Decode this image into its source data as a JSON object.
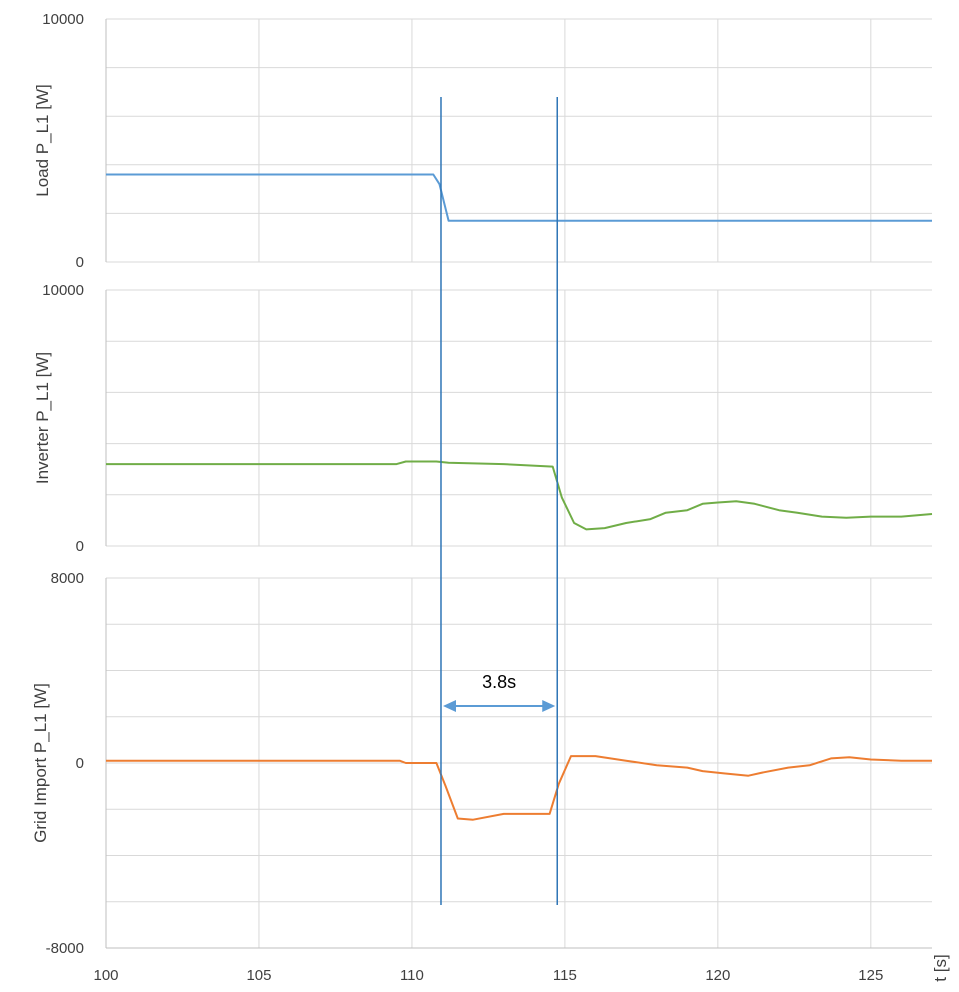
{
  "chart_data": [
    {
      "type": "line",
      "ylabel": "Load P_L1 [W]",
      "ylim": [
        0,
        10000
      ],
      "ytick_labels": [
        "0",
        "10000"
      ],
      "grid": true,
      "color": "#5b9bd5",
      "x": [
        100,
        110.7,
        110.9,
        111.2,
        127
      ],
      "y": [
        3600,
        3600,
        3200,
        1700,
        1700
      ]
    },
    {
      "type": "line",
      "ylabel": "Inverter P_L1 [W]",
      "ylim": [
        0,
        10000
      ],
      "ytick_labels": [
        "0",
        "10000"
      ],
      "grid": true,
      "color": "#70ad47",
      "x": [
        100,
        109.5,
        109.8,
        110.8,
        111.2,
        113,
        114.6,
        114.9,
        115.3,
        115.7,
        116.3,
        117,
        117.8,
        118.3,
        119,
        119.5,
        120,
        120.6,
        121.2,
        122,
        122.6,
        123.4,
        124.2,
        125,
        126,
        127
      ],
      "y": [
        3200,
        3200,
        3300,
        3300,
        3250,
        3200,
        3100,
        1900,
        900,
        650,
        700,
        900,
        1050,
        1300,
        1400,
        1650,
        1700,
        1750,
        1650,
        1400,
        1300,
        1150,
        1100,
        1150,
        1150,
        1250
      ]
    },
    {
      "type": "line",
      "ylabel": "Grid Import P_L1 [W]",
      "ylim": [
        -8000,
        8000
      ],
      "ytick_labels": [
        "-8000",
        "0",
        "8000"
      ],
      "grid": true,
      "color": "#ed7d31",
      "x": [
        100,
        109.6,
        109.8,
        110.8,
        111.1,
        111.5,
        112,
        113,
        114.5,
        114.8,
        115.2,
        116,
        117,
        118,
        119,
        119.5,
        120.2,
        121,
        121.5,
        122.3,
        123,
        123.7,
        124.3,
        125,
        126,
        127
      ],
      "y": [
        100,
        100,
        0,
        0,
        -1000,
        -2400,
        -2450,
        -2200,
        -2200,
        -900,
        300,
        300,
        100,
        -100,
        -200,
        -350,
        -450,
        -550,
        -400,
        -200,
        -100,
        200,
        250,
        150,
        100,
        100
      ]
    }
  ],
  "x_axis": {
    "label": "t [s]",
    "xlim": [
      100,
      127
    ],
    "ticks": [
      100,
      105,
      110,
      115,
      120,
      125
    ],
    "tick_labels": [
      "100",
      "105",
      "110",
      "115",
      "120",
      "125"
    ]
  },
  "markers": {
    "x": [
      110.95,
      114.75
    ],
    "color": "#2e75b6",
    "annotation": "3.8s"
  }
}
